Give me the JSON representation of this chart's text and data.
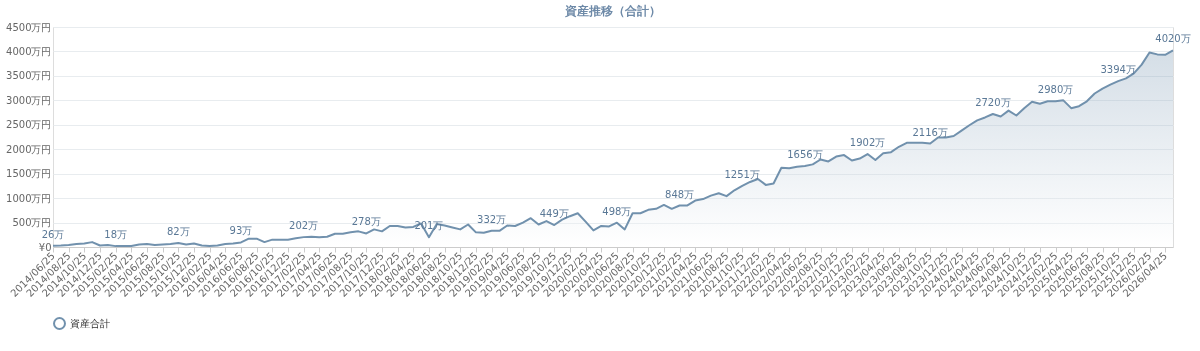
{
  "chart_data": {
    "type": "area",
    "title": "資産推移（合計）",
    "categories": [
      "2014/06/25",
      null,
      "2014/08/25",
      null,
      "2014/10/25",
      null,
      "2014/12/25",
      null,
      "2015/02/25",
      null,
      "2015/04/25",
      null,
      "2015/06/25",
      null,
      "2015/08/25",
      null,
      "2015/10/25",
      null,
      "2015/12/25",
      null,
      "2016/02/25",
      null,
      "2016/04/25",
      null,
      "2016/06/25",
      null,
      "2016/08/25",
      null,
      "2016/10/25",
      null,
      "2016/12/25",
      null,
      "2017/02/25",
      null,
      "2017/04/25",
      null,
      "2017/06/25",
      null,
      "2017/08/25",
      null,
      "2017/10/25",
      null,
      "2017/12/25",
      null,
      "2018/02/25",
      null,
      "2018/04/25",
      null,
      "2018/06/25",
      null,
      "2018/08/25",
      null,
      "2018/10/25",
      null,
      "2018/12/25",
      null,
      "2019/02/25",
      null,
      "2019/04/25",
      null,
      "2019/06/25",
      null,
      "2019/08/25",
      null,
      "2019/10/25",
      null,
      "2019/12/25",
      null,
      "2020/02/25",
      null,
      "2020/04/25",
      null,
      "2020/06/25",
      null,
      "2020/08/25",
      null,
      "2020/10/25",
      null,
      "2020/12/25",
      null,
      "2021/02/25",
      null,
      "2021/04/25",
      null,
      "2021/06/25",
      null,
      "2021/08/25",
      null,
      "2021/10/25",
      null,
      "2021/12/25",
      null,
      "2022/02/25",
      null,
      "2022/04/25",
      null,
      "2022/06/25",
      null,
      "2022/08/25",
      null,
      "2022/10/25",
      null,
      "2022/12/25",
      null,
      "2023/02/25",
      null,
      "2023/04/25",
      null,
      "2023/06/25",
      null,
      "2023/08/25",
      null,
      "2023/10/25",
      null,
      "2023/12/25",
      null,
      "2024/02/25",
      null,
      "2024/04/25",
      null,
      "2024/06/25",
      null,
      "2024/08/25",
      null,
      "2024/10/25",
      null,
      "2024/12/25",
      null,
      "2025/02/25",
      null,
      "2025/04/25",
      null,
      "2025/06/25",
      null,
      "2025/08/25",
      null,
      "2025/10/25",
      null,
      "2025/12/25",
      null,
      "2026/02/25",
      null,
      "2026/04/25",
      null
    ],
    "series": [
      {
        "name": "資産合計",
        "color": "#7191ad",
        "values": [
          26,
          30,
          40,
          60,
          70,
          100,
          30,
          40,
          18,
          20,
          20,
          50,
          60,
          40,
          50,
          60,
          82,
          50,
          70,
          30,
          20,
          30,
          60,
          70,
          93,
          170,
          170,
          100,
          150,
          150,
          150,
          180,
          202,
          210,
          200,
          210,
          270,
          270,
          300,
          320,
          278,
          360,
          320,
          430,
          430,
          400,
          410,
          480,
          201,
          470,
          440,
          400,
          360,
          460,
          300,
          290,
          332,
          330,
          440,
          430,
          500,
          590,
          460,
          530,
          449,
          560,
          630,
          690,
          520,
          340,
          430,
          420,
          498,
          360,
          690,
          690,
          760,
          780,
          860,
          780,
          848,
          850,
          950,
          980,
          1050,
          1100,
          1040,
          1160,
          1251,
          1330,
          1390,
          1270,
          1300,
          1620,
          1610,
          1640,
          1656,
          1690,
          1790,
          1750,
          1850,
          1880,
          1770,
          1810,
          1902,
          1780,
          1920,
          1940,
          2050,
          2130,
          2130,
          2130,
          2116,
          2240,
          2240,
          2270,
          2380,
          2490,
          2590,
          2650,
          2720,
          2670,
          2790,
          2690,
          2840,
          2970,
          2930,
          2980,
          2980,
          3000,
          2840,
          2880,
          2980,
          3140,
          3240,
          3320,
          3394,
          3450,
          3550,
          3730,
          3980,
          3940,
          3930,
          4020
        ],
        "value_labels": [
          "26万",
          null,
          null,
          null,
          null,
          null,
          null,
          null,
          "18万",
          null,
          null,
          null,
          null,
          null,
          null,
          null,
          "82万",
          null,
          null,
          null,
          null,
          null,
          null,
          null,
          "93万",
          null,
          null,
          null,
          null,
          null,
          null,
          null,
          "202万",
          null,
          null,
          null,
          null,
          null,
          null,
          null,
          "278万",
          null,
          null,
          null,
          null,
          null,
          null,
          null,
          "201万",
          null,
          null,
          null,
          null,
          null,
          null,
          null,
          "332万",
          null,
          null,
          null,
          null,
          null,
          null,
          null,
          "449万",
          null,
          null,
          null,
          null,
          null,
          null,
          null,
          "498万",
          null,
          null,
          null,
          null,
          null,
          null,
          null,
          "848万",
          null,
          null,
          null,
          null,
          null,
          null,
          null,
          "1251万",
          null,
          null,
          null,
          null,
          null,
          null,
          null,
          "1656万",
          null,
          null,
          null,
          null,
          null,
          null,
          null,
          "1902万",
          null,
          null,
          null,
          null,
          null,
          null,
          null,
          "2116万",
          null,
          null,
          null,
          null,
          null,
          null,
          null,
          "2720万",
          null,
          null,
          null,
          null,
          null,
          null,
          null,
          "2980万",
          null,
          null,
          null,
          null,
          null,
          null,
          null,
          "3394万",
          null,
          null,
          null,
          null,
          null,
          null,
          "4020万"
        ]
      }
    ],
    "ylim": [
      0,
      4500
    ],
    "yticks": [
      {
        "value": 0,
        "label": "¥0"
      },
      {
        "value": 500,
        "label": "500万円"
      },
      {
        "value": 1000,
        "label": "1000万円"
      },
      {
        "value": 1500,
        "label": "1500万円"
      },
      {
        "value": 2000,
        "label": "2000万円"
      },
      {
        "value": 2500,
        "label": "2500万円"
      },
      {
        "value": 3000,
        "label": "3000万円"
      },
      {
        "value": 3500,
        "label": "3500万円"
      },
      {
        "value": 4000,
        "label": "4000万円"
      },
      {
        "value": 4500,
        "label": "4500万円"
      }
    ],
    "grid": "y",
    "legend": "bottom",
    "marker": "none",
    "line_style": "solid"
  }
}
